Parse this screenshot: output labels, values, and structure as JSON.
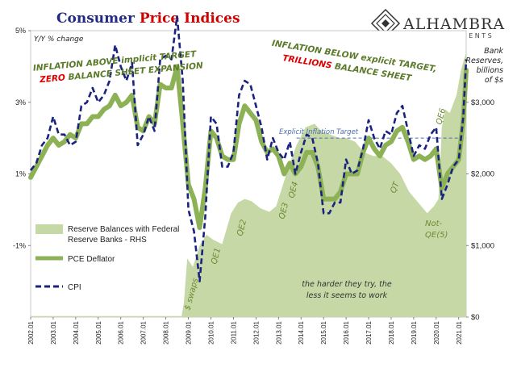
{
  "title_part1": "Consumer ",
  "title_part2": "Price Indices",
  "logo": {
    "name": "ALHAMBRA",
    "sub": "INVESTMENTS"
  },
  "left_axis_label": "Y/Y % change",
  "right_axis_label": [
    "Bank",
    "Reserves,",
    "billions",
    "of $s"
  ],
  "annotations": {
    "left_line1": "INFLATION ABOVE implicit TARGET",
    "left_line2_red": "ZERO",
    "left_line2_rest": " BALANCE SHEET EXPANSION",
    "right_line1": "INFLATION BELOW explicit TARGET,",
    "right_line2_red": "TRILLIONS",
    "right_line2_rest": " BALANCE SHEET",
    "target": "Explicit Inflation Target",
    "swaps": "$ swaps",
    "qe1": "QE1",
    "qe2": "QE2",
    "qe3": "QE3",
    "qe4": "QE4",
    "qt": "QT",
    "qe6": "QE6",
    "notqe1": "Not-",
    "notqe2": "QE(5)",
    "tryline1": "the harder they try, the",
    "tryline2": "less it seems to work"
  },
  "legend": [
    {
      "label_line1": "Reserve Balances with Federal",
      "label_line2": "Reserve Banks - RHS",
      "style": "area",
      "color": "#c6d8a6"
    },
    {
      "label_line1": "PCE Deflator",
      "label_line2": "",
      "style": "line",
      "color": "#8db255"
    },
    {
      "label_line1": "CPI",
      "label_line2": "",
      "style": "dashed",
      "color": "#1a237e"
    }
  ],
  "chart_data": {
    "type": "line",
    "x_range": [
      2002.0,
      2021.33
    ],
    "left_ylim": [
      -3,
      5
    ],
    "right_ylim": [
      0,
      4000
    ],
    "left_ticks": [
      {
        "v": 5,
        "label": "5%"
      },
      {
        "v": 3,
        "label": "3%"
      },
      {
        "v": 1,
        "label": "1%"
      },
      {
        "v": -1,
        "label": "-1%"
      }
    ],
    "right_ticks": [
      {
        "v": 3000,
        "label": "$3,000"
      },
      {
        "v": 2000,
        "label": "$2,000"
      },
      {
        "v": 1000,
        "label": "$1,000"
      },
      {
        "v": 0,
        "label": "$0"
      }
    ],
    "x_ticks": [
      "2002.01",
      "2003.01",
      "2004.01",
      "2005.01",
      "2006.01",
      "2007.01",
      "2008.01",
      "2009.01",
      "2010.01",
      "2011.01",
      "2012.01",
      "2013.01",
      "2014.01",
      "2015.01",
      "2016.01",
      "2017.01",
      "2018.01",
      "2019.01",
      "2020.01",
      "2021.01"
    ],
    "target_level": 2.0,
    "series": [
      {
        "name": "Reserve Balances with Federal Reserve Banks - RHS",
        "axis": "right",
        "x": [
          2002.0,
          2008.7,
          2008.8,
          2008.95,
          2009.2,
          2009.5,
          2009.8,
          2010.1,
          2010.5,
          2010.9,
          2011.2,
          2011.5,
          2011.8,
          2012.2,
          2012.6,
          2012.9,
          2013.2,
          2013.5,
          2013.8,
          2014.2,
          2014.6,
          2014.9,
          2015.3,
          2015.7,
          2016.0,
          2016.4,
          2016.8,
          2017.2,
          2017.6,
          2018.0,
          2018.4,
          2018.8,
          2019.2,
          2019.6,
          2019.9,
          2020.1,
          2020.25,
          2020.4,
          2020.6,
          2020.9,
          2021.1,
          2021.33
        ],
        "values": [
          15,
          15,
          200,
          820,
          700,
          1000,
          1150,
          1080,
          1020,
          1450,
          1600,
          1650,
          1620,
          1520,
          1470,
          1550,
          1850,
          2150,
          2400,
          2650,
          2700,
          2600,
          2550,
          2500,
          2500,
          2450,
          2300,
          2250,
          2250,
          2150,
          2000,
          1750,
          1600,
          1450,
          1550,
          1650,
          2650,
          2900,
          2850,
          3100,
          3450,
          3700
        ]
      },
      {
        "name": "PCE Deflator",
        "axis": "left",
        "x": [
          2002.0,
          2002.25,
          2002.5,
          2002.75,
          2003.0,
          2003.25,
          2003.5,
          2003.75,
          2004.0,
          2004.25,
          2004.5,
          2004.75,
          2005.0,
          2005.25,
          2005.5,
          2005.75,
          2006.0,
          2006.25,
          2006.5,
          2006.75,
          2007.0,
          2007.25,
          2007.5,
          2007.75,
          2008.0,
          2008.25,
          2008.5,
          2008.75,
          2009.0,
          2009.25,
          2009.5,
          2009.75,
          2010.0,
          2010.25,
          2010.5,
          2010.75,
          2011.0,
          2011.25,
          2011.5,
          2011.75,
          2012.0,
          2012.25,
          2012.5,
          2012.75,
          2013.0,
          2013.25,
          2013.5,
          2013.75,
          2014.0,
          2014.25,
          2014.5,
          2014.75,
          2015.0,
          2015.25,
          2015.5,
          2015.75,
          2016.0,
          2016.25,
          2016.5,
          2016.75,
          2017.0,
          2017.25,
          2017.5,
          2017.75,
          2018.0,
          2018.25,
          2018.5,
          2018.75,
          2019.0,
          2019.25,
          2019.5,
          2019.75,
          2020.0,
          2020.25,
          2020.5,
          2020.75,
          2021.0,
          2021.2,
          2021.33
        ],
        "values": [
          0.9,
          1.2,
          1.5,
          1.8,
          2.0,
          1.8,
          1.9,
          2.1,
          2.0,
          2.4,
          2.4,
          2.6,
          2.6,
          2.8,
          2.9,
          3.2,
          2.9,
          3.0,
          3.2,
          2.3,
          2.2,
          2.6,
          2.4,
          3.5,
          3.4,
          3.4,
          4.0,
          2.4,
          0.7,
          0.3,
          -0.5,
          0.6,
          2.2,
          2.0,
          1.5,
          1.4,
          1.4,
          2.4,
          2.9,
          2.7,
          2.5,
          1.9,
          1.6,
          1.7,
          1.5,
          1.0,
          1.3,
          1.0,
          1.2,
          1.6,
          1.6,
          1.2,
          0.3,
          0.3,
          0.3,
          0.5,
          1.0,
          1.0,
          1.0,
          1.6,
          2.0,
          1.7,
          1.5,
          1.8,
          1.9,
          2.2,
          2.3,
          1.9,
          1.4,
          1.5,
          1.4,
          1.5,
          1.7,
          0.6,
          1.0,
          1.2,
          1.4,
          2.5,
          3.9
        ]
      },
      {
        "name": "CPI",
        "axis": "left",
        "x": [
          2002.0,
          2002.25,
          2002.5,
          2002.75,
          2003.0,
          2003.25,
          2003.5,
          2003.75,
          2004.0,
          2004.25,
          2004.5,
          2004.75,
          2005.0,
          2005.25,
          2005.5,
          2005.75,
          2006.0,
          2006.25,
          2006.5,
          2006.75,
          2007.0,
          2007.25,
          2007.5,
          2007.75,
          2008.0,
          2008.25,
          2008.5,
          2008.75,
          2009.0,
          2009.25,
          2009.5,
          2009.75,
          2010.0,
          2010.25,
          2010.5,
          2010.75,
          2011.0,
          2011.25,
          2011.5,
          2011.75,
          2012.0,
          2012.25,
          2012.5,
          2012.75,
          2013.0,
          2013.25,
          2013.5,
          2013.75,
          2014.0,
          2014.25,
          2014.5,
          2014.75,
          2015.0,
          2015.25,
          2015.5,
          2015.75,
          2016.0,
          2016.25,
          2016.5,
          2016.75,
          2017.0,
          2017.25,
          2017.5,
          2017.75,
          2018.0,
          2018.25,
          2018.5,
          2018.75,
          2019.0,
          2019.25,
          2019.5,
          2019.75,
          2020.0,
          2020.25,
          2020.5,
          2020.75,
          2021.0,
          2021.2,
          2021.33
        ],
        "values": [
          1.1,
          1.3,
          1.8,
          2.0,
          2.6,
          2.1,
          2.1,
          1.8,
          1.9,
          2.9,
          3.0,
          3.4,
          3.0,
          3.2,
          3.6,
          4.6,
          4.0,
          3.6,
          4.1,
          1.8,
          2.1,
          2.6,
          2.2,
          4.2,
          4.3,
          4.2,
          5.4,
          3.6,
          0.0,
          -0.6,
          -2.0,
          -0.2,
          2.6,
          2.4,
          1.2,
          1.2,
          1.6,
          3.2,
          3.6,
          3.5,
          2.9,
          2.3,
          1.4,
          2.0,
          1.6,
          1.4,
          1.9,
          1.0,
          1.6,
          2.1,
          2.0,
          1.3,
          -0.1,
          -0.1,
          0.2,
          0.2,
          1.4,
          1.0,
          1.1,
          1.7,
          2.5,
          2.0,
          1.7,
          2.2,
          2.1,
          2.7,
          2.9,
          2.2,
          1.5,
          1.8,
          1.7,
          2.1,
          2.3,
          0.3,
          0.7,
          1.2,
          1.4,
          2.6,
          4.2
        ]
      }
    ]
  }
}
